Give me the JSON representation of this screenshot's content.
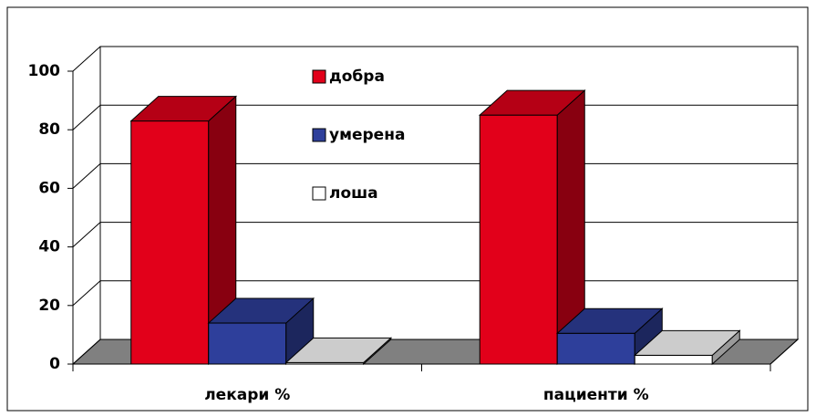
{
  "chart_data": {
    "type": "bar3d",
    "categories": [
      "лекари %",
      "пациенти %"
    ],
    "series": [
      {
        "name": "добра",
        "color": "#e2001a",
        "values": [
          83,
          85
        ]
      },
      {
        "name": "умерена",
        "color": "#2e3f9b",
        "values": [
          14,
          10.5
        ]
      },
      {
        "name": "лоша",
        "color": "#ffffff",
        "values": [
          0.5,
          3
        ]
      }
    ],
    "ylim": [
      0,
      100
    ],
    "yticks": [
      0,
      20,
      40,
      60,
      80,
      100
    ],
    "grid": true
  }
}
